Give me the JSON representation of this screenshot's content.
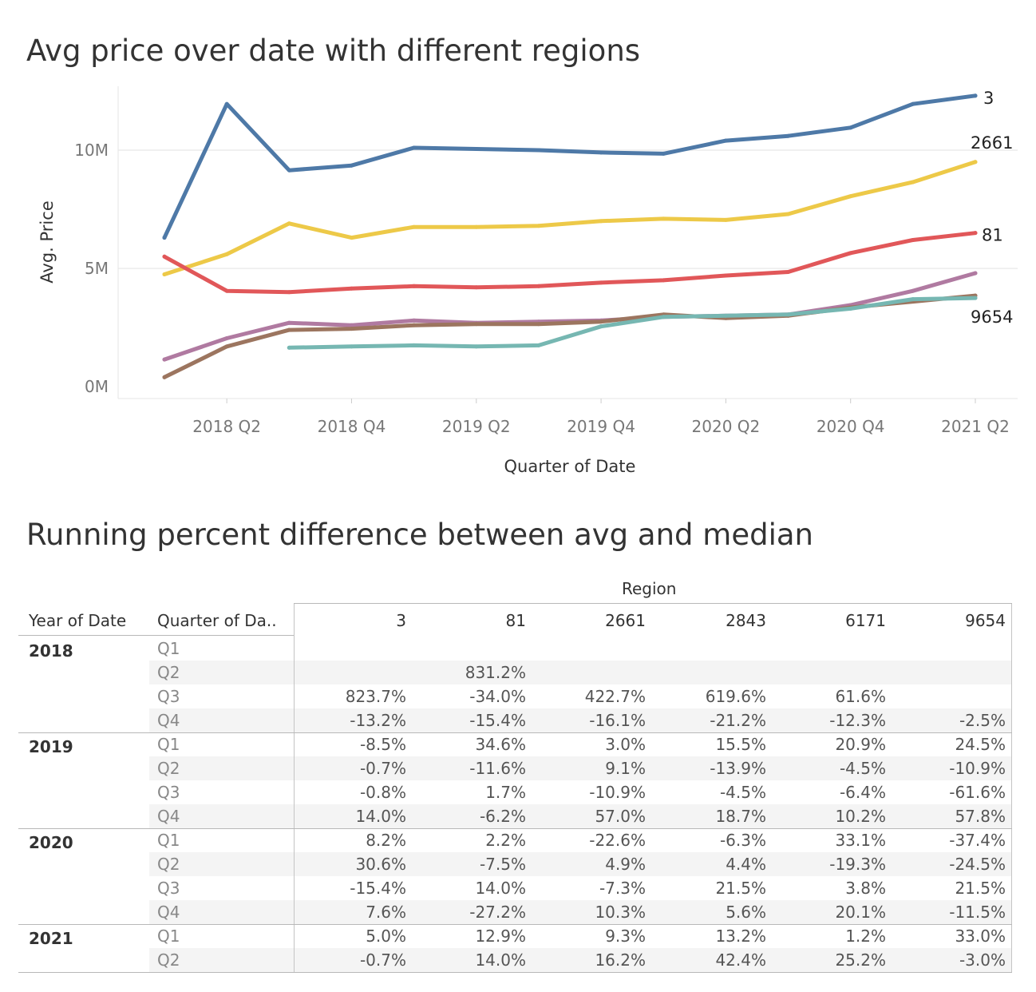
{
  "chart_title": "Avg price over date with different regions",
  "table_title": "Running percent difference between avg and median",
  "chart_data": {
    "type": "line",
    "title": "Avg price over date with different regions",
    "xlabel": "Quarter of Date",
    "ylabel": "Avg. Price",
    "x": [
      "2018 Q1",
      "2018 Q2",
      "2018 Q3",
      "2018 Q4",
      "2019 Q1",
      "2019 Q2",
      "2019 Q3",
      "2019 Q4",
      "2020 Q1",
      "2020 Q2",
      "2020 Q3",
      "2020 Q4",
      "2021 Q1",
      "2021 Q2"
    ],
    "x_tick_labels": [
      "2018 Q2",
      "2018 Q4",
      "2019 Q2",
      "2019 Q4",
      "2020 Q2",
      "2020 Q4",
      "2021 Q2"
    ],
    "y_tick_labels": [
      "0M",
      "5M",
      "10M"
    ],
    "y_ticks": [
      0,
      5000000,
      10000000
    ],
    "ylim": [
      -500000,
      12700000
    ],
    "grid": "horizontal",
    "legend": "none (end-of-line labels)",
    "series": [
      {
        "name": "3",
        "label": "3",
        "color": "#4e79a7",
        "values": [
          6300000,
          11950000,
          9150000,
          9350000,
          10100000,
          10050000,
          10000000,
          9900000,
          9850000,
          10400000,
          10600000,
          10950000,
          11950000,
          12300000
        ]
      },
      {
        "name": "2661",
        "label": "2661",
        "color": "#edc948",
        "values": [
          4750000,
          5600000,
          6900000,
          6300000,
          6750000,
          6750000,
          6800000,
          7000000,
          7100000,
          7050000,
          7300000,
          8050000,
          8650000,
          9500000
        ]
      },
      {
        "name": "81",
        "label": "81",
        "color": "#e15759",
        "values": [
          5500000,
          4050000,
          4000000,
          4150000,
          4250000,
          4200000,
          4250000,
          4400000,
          4500000,
          4700000,
          4850000,
          5650000,
          6200000,
          6500000
        ]
      },
      {
        "name": "2843",
        "label": "",
        "color": "#b07aa1",
        "values": [
          1150000,
          2050000,
          2700000,
          2600000,
          2800000,
          2700000,
          2750000,
          2800000,
          2950000,
          3000000,
          3050000,
          3450000,
          4050000,
          4800000
        ]
      },
      {
        "name": "9654",
        "label": "9654",
        "color": "#9c755f",
        "values": [
          400000,
          1700000,
          2400000,
          2450000,
          2600000,
          2650000,
          2650000,
          2750000,
          3050000,
          2900000,
          3000000,
          3350000,
          3600000,
          3850000
        ]
      },
      {
        "name": "6171",
        "label": "",
        "color": "#76b7b2",
        "values": [
          null,
          null,
          1650000,
          1700000,
          1750000,
          1700000,
          1750000,
          2550000,
          2950000,
          3000000,
          3050000,
          3300000,
          3700000,
          3750000
        ]
      }
    ]
  },
  "table": {
    "region_header": "Region",
    "year_header": "Year of Date",
    "quarter_header": "Quarter of Da..",
    "columns": [
      "3",
      "81",
      "2661",
      "2843",
      "6171",
      "9654"
    ],
    "groups": [
      {
        "year": "2018",
        "rows": [
          {
            "q": "Q1",
            "v": [
              "",
              "",
              "",
              "",
              "",
              ""
            ]
          },
          {
            "q": "Q2",
            "v": [
              "",
              "831.2%",
              "",
              "",
              "",
              ""
            ]
          },
          {
            "q": "Q3",
            "v": [
              "823.7%",
              "-34.0%",
              "422.7%",
              "619.6%",
              "61.6%",
              ""
            ]
          },
          {
            "q": "Q4",
            "v": [
              "-13.2%",
              "-15.4%",
              "-16.1%",
              "-21.2%",
              "-12.3%",
              "-2.5%"
            ]
          }
        ]
      },
      {
        "year": "2019",
        "rows": [
          {
            "q": "Q1",
            "v": [
              "-8.5%",
              "34.6%",
              "3.0%",
              "15.5%",
              "20.9%",
              "24.5%"
            ]
          },
          {
            "q": "Q2",
            "v": [
              "-0.7%",
              "-11.6%",
              "9.1%",
              "-13.9%",
              "-4.5%",
              "-10.9%"
            ]
          },
          {
            "q": "Q3",
            "v": [
              "-0.8%",
              "1.7%",
              "-10.9%",
              "-4.5%",
              "-6.4%",
              "-61.6%"
            ]
          },
          {
            "q": "Q4",
            "v": [
              "14.0%",
              "-6.2%",
              "57.0%",
              "18.7%",
              "10.2%",
              "57.8%"
            ]
          }
        ]
      },
      {
        "year": "2020",
        "rows": [
          {
            "q": "Q1",
            "v": [
              "8.2%",
              "2.2%",
              "-22.6%",
              "-6.3%",
              "33.1%",
              "-37.4%"
            ]
          },
          {
            "q": "Q2",
            "v": [
              "30.6%",
              "-7.5%",
              "4.9%",
              "4.4%",
              "-19.3%",
              "-24.5%"
            ]
          },
          {
            "q": "Q3",
            "v": [
              "-15.4%",
              "14.0%",
              "-7.3%",
              "21.5%",
              "3.8%",
              "21.5%"
            ]
          },
          {
            "q": "Q4",
            "v": [
              "7.6%",
              "-27.2%",
              "10.3%",
              "5.6%",
              "20.1%",
              "-11.5%"
            ]
          }
        ]
      },
      {
        "year": "2021",
        "rows": [
          {
            "q": "Q1",
            "v": [
              "5.0%",
              "12.9%",
              "9.3%",
              "13.2%",
              "1.2%",
              "33.0%"
            ]
          },
          {
            "q": "Q2",
            "v": [
              "-0.7%",
              "14.0%",
              "16.2%",
              "42.4%",
              "25.2%",
              "-3.0%"
            ]
          }
        ]
      }
    ]
  }
}
